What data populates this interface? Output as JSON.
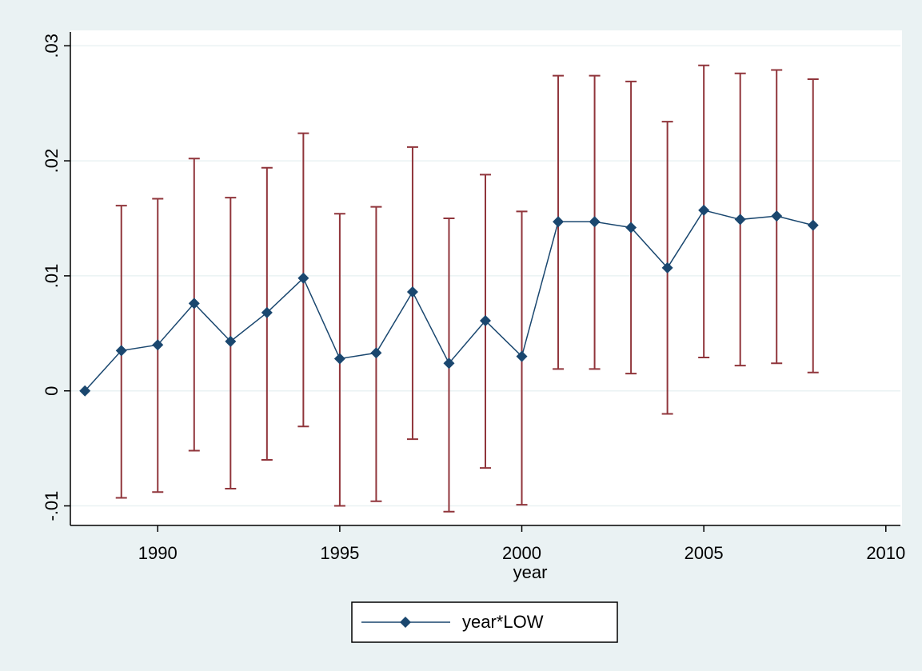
{
  "chart_data": {
    "type": "line",
    "x_label": "year",
    "x": [
      1988,
      1989,
      1990,
      1991,
      1992,
      1993,
      1994,
      1995,
      1996,
      1997,
      1998,
      1999,
      2000,
      2001,
      2002,
      2003,
      2004,
      2005,
      2006,
      2007,
      2008
    ],
    "series": [
      {
        "name": "year*LOW",
        "color": "#1a476f",
        "ci_color": "#90353b",
        "values": [
          0,
          0.0035,
          0.004,
          0.0076,
          0.0043,
          0.0068,
          0.0098,
          0.0028,
          0.0033,
          0.0086,
          0.0024,
          0.0061,
          0.003,
          0.0147,
          0.0147,
          0.0142,
          0.0107,
          0.0157,
          0.0149,
          0.0152,
          0.0144
        ],
        "ci_low": [
          null,
          -0.0093,
          -0.0088,
          -0.0052,
          -0.0085,
          -0.006,
          -0.0031,
          -0.01,
          -0.0096,
          -0.0042,
          -0.0105,
          -0.0067,
          -0.0099,
          0.0019,
          0.0019,
          0.0015,
          -0.002,
          0.0029,
          0.0022,
          0.0024,
          0.0016
        ],
        "ci_high": [
          null,
          0.0161,
          0.0167,
          0.0202,
          0.0168,
          0.0194,
          0.0224,
          0.0154,
          0.016,
          0.0212,
          0.015,
          0.0188,
          0.0156,
          0.0274,
          0.0274,
          0.0269,
          0.0234,
          0.0283,
          0.0276,
          0.0279,
          0.0271
        ]
      }
    ],
    "xlim": [
      1987.6,
      2010.4
    ],
    "xticks": [
      1990,
      1995,
      2000,
      2005,
      2010
    ],
    "ylim": [
      -0.0117,
      0.0312
    ],
    "yticks": [
      {
        "value": -0.01,
        "label": "-.01"
      },
      0,
      {
        "value": 0.01,
        "label": ".01"
      },
      {
        "value": 0.02,
        "label": ".02"
      },
      {
        "value": 0.03,
        "label": ".03"
      }
    ],
    "grid": true
  }
}
